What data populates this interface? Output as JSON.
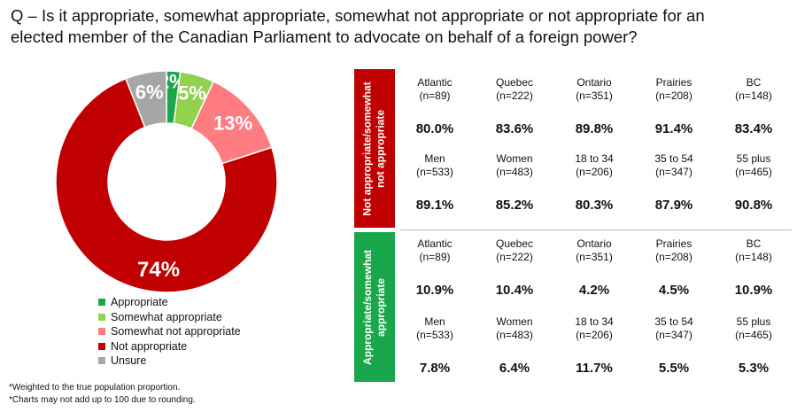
{
  "title": {
    "line1": "Q – Is it appropriate, somewhat appropriate, somewhat not appropriate or not appropriate for an",
    "line2": "elected member of the Canadian Parliament to advocate on behalf of a foreign power?"
  },
  "chart_data": [
    {
      "type": "pie",
      "variant": "donut",
      "categories": [
        "Appropriate",
        "Somewhat appropriate",
        "Somewhat not appropriate",
        "Not appropriate",
        "Unsure"
      ],
      "values": [
        2,
        5,
        13,
        74,
        6
      ],
      "value_labels": [
        "2%",
        "5%",
        "13%",
        "74%",
        "6%"
      ],
      "colors": [
        "#1aa64a",
        "#92d050",
        "#ff7c80",
        "#c00000",
        "#a6a6a6"
      ],
      "legend_position": "bottom"
    },
    {
      "type": "table",
      "groups": [
        {
          "band_label_line1": "Not appropriate/somewhat",
          "band_label_line2": "not appropriate",
          "band_color": "#c00000",
          "rows": [
            {
              "cells": [
                {
                  "name": "Atlantic",
                  "n": "(n=89)",
                  "value": "80.0%"
                },
                {
                  "name": "Quebec",
                  "n": "(n=222)",
                  "value": "83.6%"
                },
                {
                  "name": "Ontario",
                  "n": "(n=351)",
                  "value": "89.8%"
                },
                {
                  "name": "Prairies",
                  "n": "(n=208)",
                  "value": "91.4%"
                },
                {
                  "name": "BC",
                  "n": "(n=148)",
                  "value": "83.4%"
                }
              ]
            },
            {
              "cells": [
                {
                  "name": "Men",
                  "n": "(n=533)",
                  "value": "89.1%"
                },
                {
                  "name": "Women",
                  "n": "(n=483)",
                  "value": "85.2%"
                },
                {
                  "name": "18 to 34",
                  "n": "(n=206)",
                  "value": "80.3%"
                },
                {
                  "name": "35 to 54",
                  "n": "(n=347)",
                  "value": "87.9%"
                },
                {
                  "name": "55 plus",
                  "n": "(n=465)",
                  "value": "90.8%"
                }
              ]
            }
          ]
        },
        {
          "band_label_line1": "Appropriate/somewhat",
          "band_label_line2": "appropriate",
          "band_color": "#1aa64a",
          "rows": [
            {
              "cells": [
                {
                  "name": "Atlantic",
                  "n": "(n=89)",
                  "value": "10.9%"
                },
                {
                  "name": "Quebec",
                  "n": "(n=222)",
                  "value": "10.4%"
                },
                {
                  "name": "Ontario",
                  "n": "(n=351)",
                  "value": "4.2%"
                },
                {
                  "name": "Prairies",
                  "n": "(n=208)",
                  "value": "4.5%"
                },
                {
                  "name": "BC",
                  "n": "(n=148)",
                  "value": "10.9%"
                }
              ]
            },
            {
              "cells": [
                {
                  "name": "Men",
                  "n": "(n=533)",
                  "value": "7.8%"
                },
                {
                  "name": "Women",
                  "n": "(n=483)",
                  "value": "6.4%"
                },
                {
                  "name": "18 to 34",
                  "n": "(n=206)",
                  "value": "11.7%"
                },
                {
                  "name": "35 to 54",
                  "n": "(n=347)",
                  "value": "5.5%"
                },
                {
                  "name": "55 plus",
                  "n": "(n=465)",
                  "value": "5.3%"
                }
              ]
            }
          ]
        }
      ]
    }
  ],
  "footnotes": [
    "*Weighted to the true population proportion.",
    "*Charts may not add up to 100 due to rounding."
  ]
}
